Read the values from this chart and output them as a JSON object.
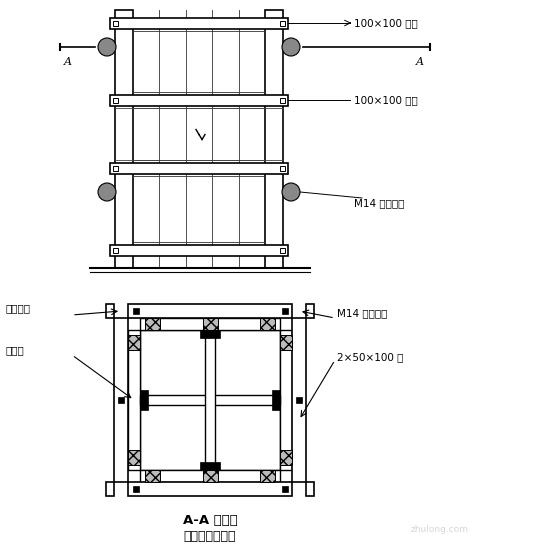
{
  "bg_color": "#ffffff",
  "line_color": "#000000",
  "title1": "A-A 剖面图",
  "title2": "柱模安装示意图",
  "label_100x100_top": "100×100 万木",
  "label_100x100_mid": "100×100 万木",
  "label_M14_top": "M14 对拉螺栓",
  "label_xianwei": "限位螺栓",
  "label_jiaoheb": "胶合板",
  "label_M14_bot": "M14 对拉螺栓",
  "label_2x50": "2×50×100 方",
  "label_A": "A",
  "watermark": "zhulong.com",
  "hatch_color": "#999999"
}
